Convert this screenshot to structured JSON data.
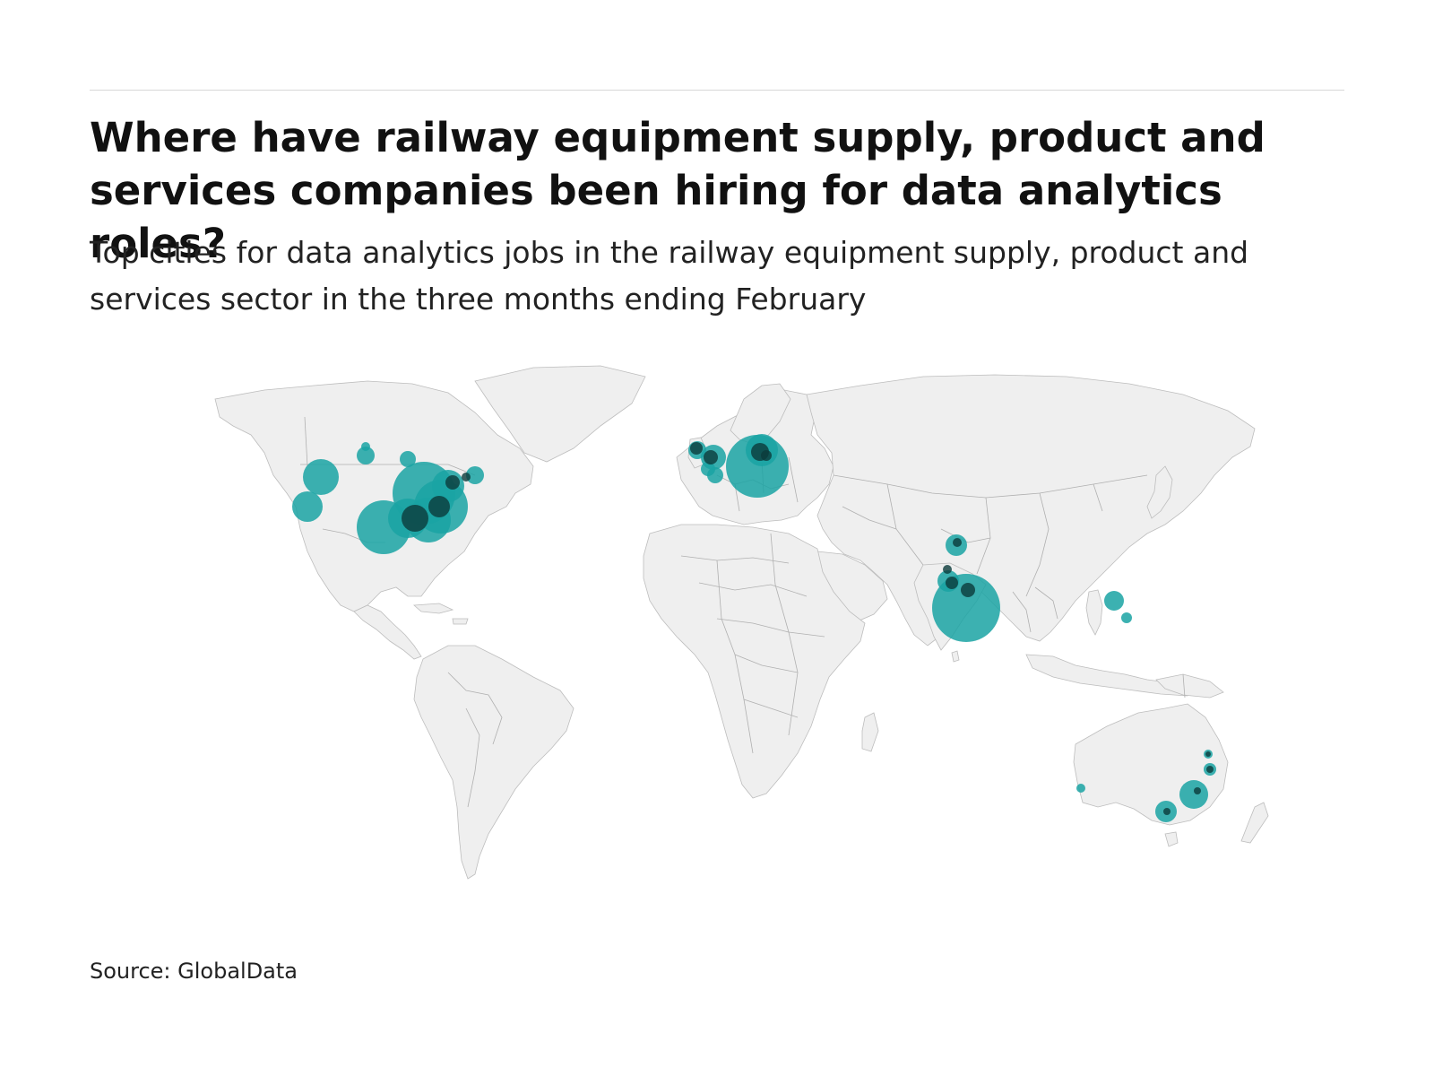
{
  "header": {
    "title": "Where have railway equipment supply, product and services companies been hiring for data analytics roles?",
    "subtitle": "Top cities for data analytics jobs in the railway equipment supply, product and services sector in the three months ending February"
  },
  "footer": {
    "source": "Source: GlobalData"
  },
  "colors": {
    "bubble": "#1aa3a3",
    "bubble_overlap": "#0b3b3b",
    "land": "#efefef",
    "border": "#b0b0b0"
  }
}
